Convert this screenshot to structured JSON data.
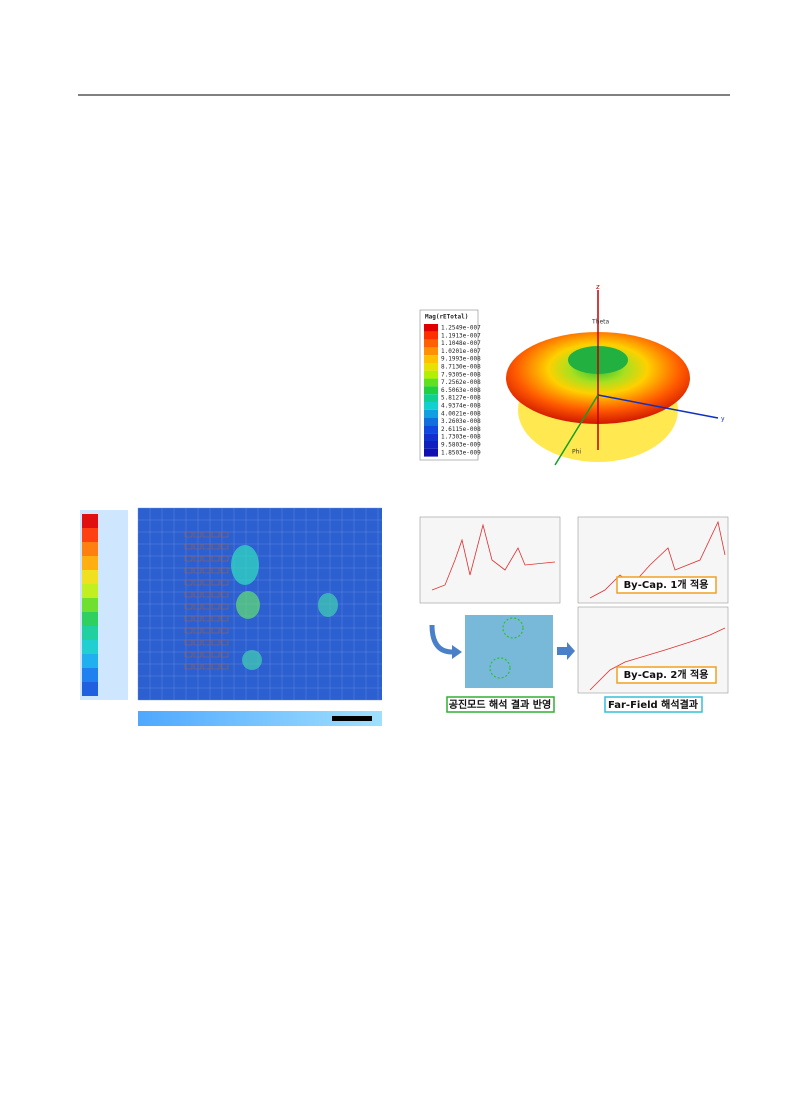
{
  "figure_top": {
    "legend_title": "Mag(rETotal)",
    "legend_values": [
      "1.2549e-007",
      "1.1913e-007",
      "1.1048e-007",
      "1.0201e-007",
      "9.1993e-008",
      "8.7130e-008",
      "7.9305e-008",
      "7.2562e-008",
      "6.5063e-008",
      "5.8127e-008",
      "4.9374e-008",
      "4.0021e-008",
      "3.2603e-008",
      "2.6115e-008",
      "1.7303e-008",
      "9.5803e-009",
      "1.8503e-009"
    ],
    "axis_z": "z",
    "axis_theta": "Theta",
    "axis_y": "y",
    "axis_phi": "Phi"
  },
  "figure_bottom": {
    "by_cap_1": "By-Cap. 1개 적용",
    "by_cap_2": "By-Cap. 2개 적용",
    "resonance_label": "공진모드 해석 결과 반영",
    "far_field_label": "Far-Field 해석결과"
  }
}
